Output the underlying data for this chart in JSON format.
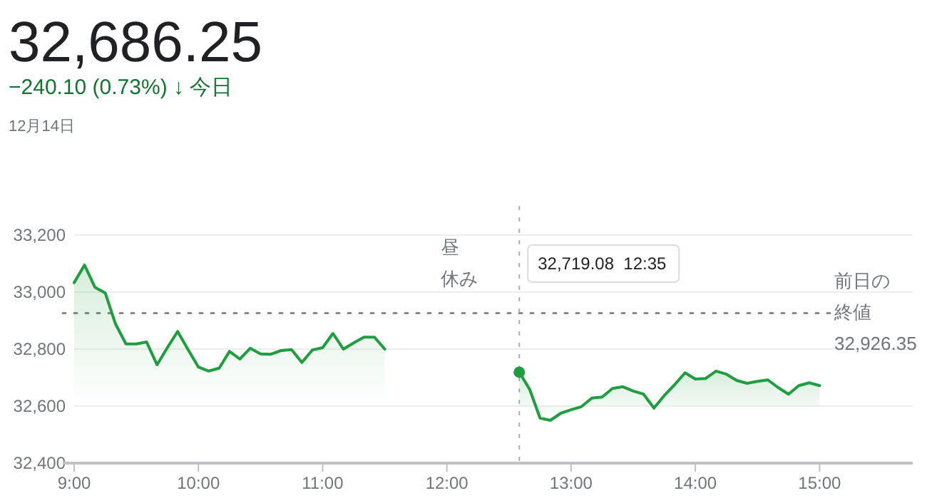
{
  "chart_data": {
    "type": "area",
    "title": "32,686.25",
    "subtitle": "−240.10 (0.73%) ↓ 今日",
    "annotations": [
      "12月14日",
      "昼休み",
      "32,719.08  12:35"
    ],
    "xlim": [
      9,
      15.75
    ],
    "ylim": [
      32400,
      33200
    ],
    "xticks": [
      {
        "value": 9,
        "label": "9:00"
      },
      {
        "value": 10,
        "label": "10:00"
      },
      {
        "value": 11,
        "label": "11:00"
      },
      {
        "value": 12,
        "label": "12:00"
      },
      {
        "value": 13,
        "label": "13:00"
      },
      {
        "value": 14,
        "label": "14:00"
      },
      {
        "value": 15,
        "label": "15:00"
      }
    ],
    "yticks": [
      {
        "value": 32400,
        "label": "32,400"
      },
      {
        "value": 32600,
        "label": "32,600"
      },
      {
        "value": 32800,
        "label": "32,800"
      },
      {
        "value": 33000,
        "label": "33,000"
      },
      {
        "value": 33200,
        "label": "33,200"
      }
    ],
    "grid": "y",
    "marker": "none",
    "line_style": "solid",
    "ref_lines": [
      {
        "axis": "y",
        "value": 32926.35,
        "label": "前日の終値\n32,926.35",
        "color": "#888888",
        "line_style": "dotted"
      },
      {
        "axis": "x",
        "value": 12.583,
        "color": "#aaaaaa",
        "line_style": "dotted"
      }
    ],
    "series": [
      {
        "color": "#1e9e3e",
        "x": [
          9,
          9.083,
          9.167,
          9.25,
          9.333,
          9.417,
          9.5,
          9.583,
          9.667,
          9.75,
          9.833,
          9.917,
          10,
          10.083,
          10.167,
          10.25,
          10.333,
          10.417,
          10.5,
          10.583,
          10.667,
          10.75,
          10.833,
          10.917,
          11,
          11.083,
          11.167,
          11.25,
          11.333,
          11.417,
          11.5
        ],
        "values": [
          33033,
          33095,
          33017,
          32997,
          32888,
          32818,
          32818,
          32825,
          32745,
          32805,
          32862,
          32798,
          32737,
          32723,
          32733,
          32792,
          32765,
          32803,
          32783,
          32782,
          32795,
          32798,
          32753,
          32797,
          32805,
          32855,
          32800,
          32822,
          32842,
          32842,
          32800
        ]
      },
      {
        "color": "#1e9e3e",
        "x": [
          12.583,
          12.667,
          12.75,
          12.833,
          12.917,
          13,
          13.083,
          13.167,
          13.25,
          13.333,
          13.417,
          13.5,
          13.583,
          13.667,
          13.75,
          13.833,
          13.917,
          14,
          14.083,
          14.167,
          14.25,
          14.333,
          14.417,
          14.5,
          14.583,
          14.667,
          14.75,
          14.833,
          14.917,
          15
        ],
        "values": [
          32719,
          32658,
          32558,
          32550,
          32575,
          32587,
          32598,
          32628,
          32632,
          32662,
          32668,
          32653,
          32642,
          32593,
          32637,
          32675,
          32717,
          32695,
          32697,
          32723,
          32712,
          32690,
          32680,
          32687,
          32692,
          32665,
          32642,
          32672,
          32682,
          32672
        ]
      }
    ]
  }
}
